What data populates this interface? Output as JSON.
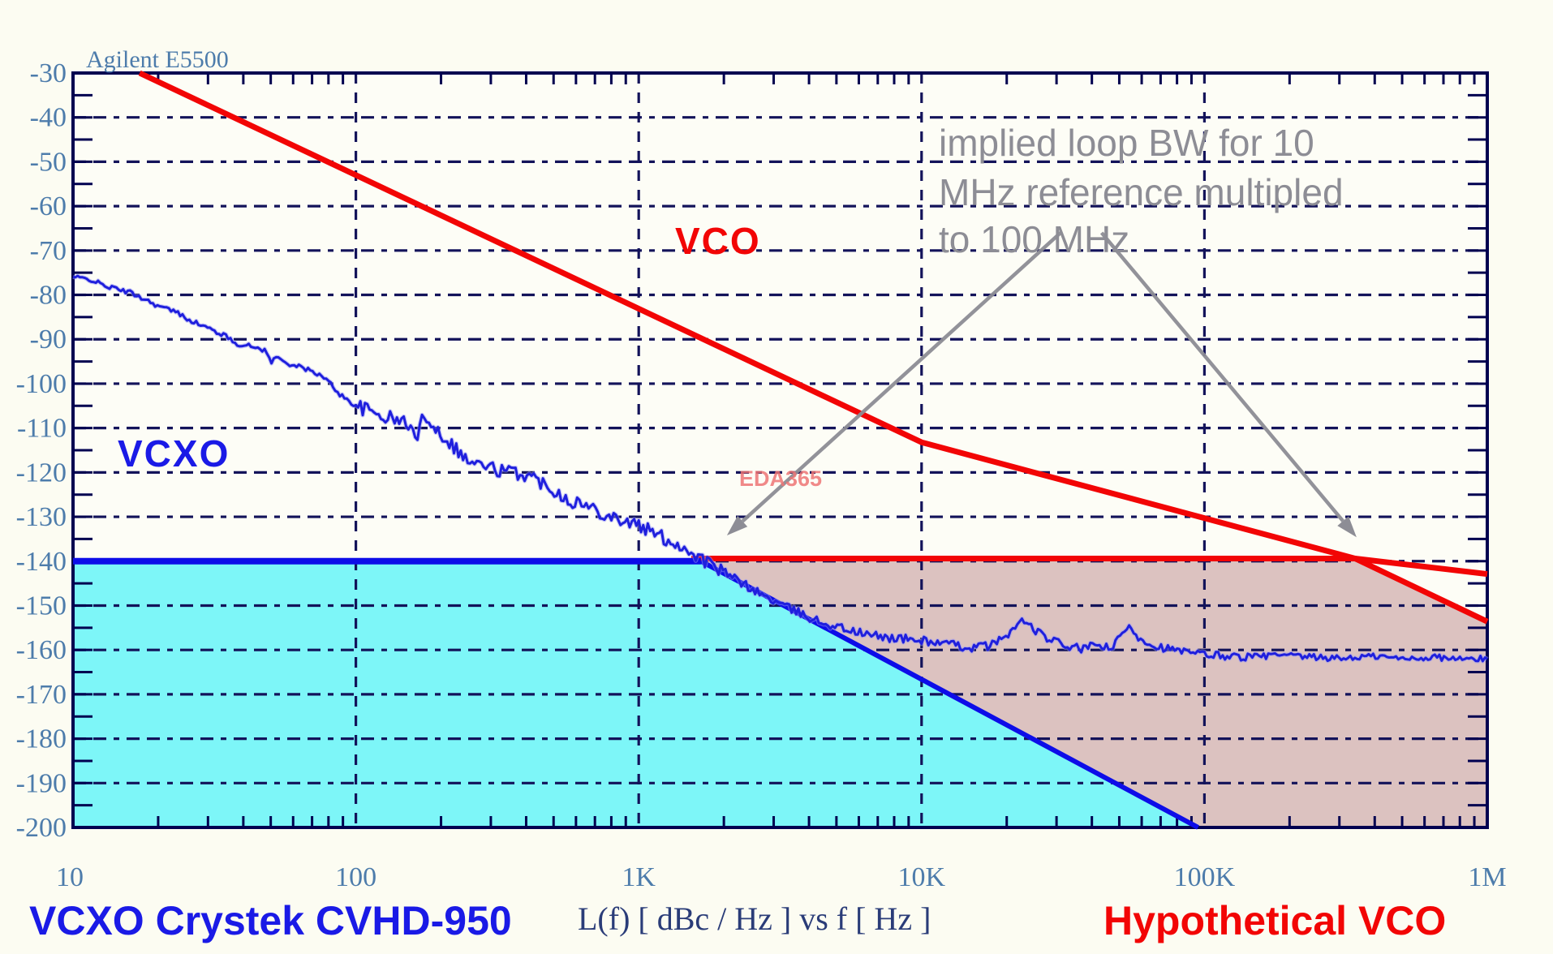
{
  "header": {
    "instrument": "Agilent E5500"
  },
  "watermark": "EDA365",
  "labels": {
    "vco": "VCO",
    "vcxo": "VCXO"
  },
  "annotation": {
    "line1": "implied loop BW for 10",
    "line2": "MHz reference multipled",
    "line3": "to 100 MHz"
  },
  "captions": {
    "left": "VCXO Crystek CVHD-950",
    "center": "L(f)  [ dBc / Hz ]  vs  f [ Hz ]",
    "right": "Hypothetical VCO"
  },
  "palette": {
    "background": "#fcfcf2",
    "plot_bg": "#fdfdf6",
    "axis_navy": "#000050",
    "grid_navy": "#13135a",
    "red": "#f20505",
    "blue_line": "#0d0de8",
    "trace_blue": "#1f1fdd",
    "trace_halo": "#9a9af5",
    "cyan_fill": "#7df6f8",
    "pink_fill": "#dcc2c0",
    "gray_annotation": "#8d8d95",
    "steel_blue_ticks": "#4d7cab",
    "caption_navy": "#2a3c78",
    "label_blue": "#1a1ae6",
    "watermark_pink": "#ee7575"
  },
  "chart_data": {
    "type": "line",
    "title": "Agilent E5500",
    "xlabel": "f [Hz]",
    "ylabel": "L(f) [dBc/Hz]",
    "x_axis": {
      "scale": "log",
      "min": 10,
      "max": 1000000,
      "tick_labels": [
        "10",
        "100",
        "1K",
        "10K",
        "100K",
        "1M"
      ]
    },
    "y_axis": {
      "min": -200,
      "max": -30,
      "step": 10,
      "tick_labels": [
        "-30",
        "-40",
        "-50",
        "-60",
        "-70",
        "-80",
        "-90",
        "-100",
        "-110",
        "-120",
        "-130",
        "-140",
        "-150",
        "-160",
        "-170",
        "-180",
        "-190",
        "-200"
      ]
    },
    "grid": "dashed",
    "legend_position": "none",
    "series": [
      {
        "name": "VCO free-running",
        "color": "red",
        "width": 7,
        "points": [
          [
            17.2,
            -30
          ],
          [
            10000,
            -113.2
          ],
          [
            341000,
            -139.4
          ],
          [
            1000000,
            -153.6
          ]
        ]
      },
      {
        "name": "10 MHz reference multiplied to 100 MHz (floor -140)",
        "color": "red",
        "width": 7,
        "points": [
          [
            1535,
            -139.4
          ],
          [
            341000,
            -139.4
          ],
          [
            1000000,
            -142.9
          ]
        ]
      },
      {
        "name": "VCXO floor -140",
        "color": "blue",
        "width": 8,
        "points": [
          [
            10,
            -140
          ],
          [
            1660,
            -140
          ]
        ]
      },
      {
        "name": "PLL loop skirt",
        "color": "blue",
        "width": 6,
        "points": [
          [
            1660,
            -140
          ],
          [
            95000,
            -200
          ]
        ]
      },
      {
        "name": "VCXO measured Crystek CVHD-950",
        "color": "trace",
        "width": 3,
        "noisy": true,
        "noise_amp": [
          [
            100,
            0.5
          ],
          [
            2000,
            1.6
          ],
          [
            20000,
            1.0
          ],
          [
            150000,
            0.9
          ],
          [
            1000001,
            0.7
          ]
        ],
        "points": [
          [
            10,
            -76
          ],
          [
            11.5,
            -76.5
          ],
          [
            13,
            -78
          ],
          [
            16,
            -79.5
          ],
          [
            18,
            -81
          ],
          [
            20,
            -82.5
          ],
          [
            23,
            -83.8
          ],
          [
            26,
            -85.7
          ],
          [
            30,
            -87.5
          ],
          [
            34,
            -89
          ],
          [
            38,
            -91
          ],
          [
            44,
            -91.8
          ],
          [
            48,
            -92.5
          ],
          [
            50,
            -95.3
          ],
          [
            52,
            -94
          ],
          [
            58,
            -95.5
          ],
          [
            65,
            -96.5
          ],
          [
            72,
            -97.5
          ],
          [
            80,
            -99.5
          ],
          [
            88,
            -102.5
          ],
          [
            100,
            -105
          ],
          [
            115,
            -106.5
          ],
          [
            135,
            -108
          ],
          [
            155,
            -109
          ],
          [
            163,
            -113
          ],
          [
            175,
            -106.5
          ],
          [
            190,
            -110
          ],
          [
            210,
            -112.5
          ],
          [
            250,
            -117.5
          ],
          [
            320,
            -119.5
          ],
          [
            400,
            -120.5
          ],
          [
            480,
            -123
          ],
          [
            560,
            -126
          ],
          [
            650,
            -127.5
          ],
          [
            780,
            -129.5
          ],
          [
            900,
            -131
          ],
          [
            1000,
            -132
          ],
          [
            1200,
            -134.5
          ],
          [
            1450,
            -137
          ],
          [
            1700,
            -139.8
          ],
          [
            2000,
            -142.5
          ],
          [
            2400,
            -145.5
          ],
          [
            2900,
            -148.5
          ],
          [
            3500,
            -151
          ],
          [
            4300,
            -153.5
          ],
          [
            5200,
            -155
          ],
          [
            6300,
            -156.5
          ],
          [
            7600,
            -157.2
          ],
          [
            9000,
            -157.6
          ],
          [
            10500,
            -158
          ],
          [
            12500,
            -158.8
          ],
          [
            15000,
            -159.5
          ],
          [
            18000,
            -158.8
          ],
          [
            21000,
            -155.5
          ],
          [
            23000,
            -153.2
          ],
          [
            25000,
            -155.5
          ],
          [
            28000,
            -157.5
          ],
          [
            32000,
            -159
          ],
          [
            37000,
            -159.8
          ],
          [
            42000,
            -158.8
          ],
          [
            47000,
            -159.8
          ],
          [
            52000,
            -155.8
          ],
          [
            55000,
            -154.8
          ],
          [
            58000,
            -157
          ],
          [
            65000,
            -158.8
          ],
          [
            75000,
            -159.8
          ],
          [
            90000,
            -160.8
          ],
          [
            110000,
            -161.2
          ],
          [
            140000,
            -161.6
          ],
          [
            180000,
            -161.2
          ],
          [
            230000,
            -161.6
          ],
          [
            300000,
            -161.9
          ],
          [
            400000,
            -161.4
          ],
          [
            500000,
            -162
          ],
          [
            650000,
            -161.6
          ],
          [
            800000,
            -162.1
          ],
          [
            1000000,
            -162
          ]
        ]
      }
    ],
    "regions": [
      {
        "name": "vcxo-dominant-region",
        "fill": "cyan",
        "points": [
          [
            10,
            -140
          ],
          [
            1660,
            -140
          ],
          [
            95000,
            -200
          ],
          [
            10,
            -200
          ]
        ]
      },
      {
        "name": "reference-dominant-region",
        "fill": "pink",
        "points": [
          [
            1660,
            -139.6
          ],
          [
            341000,
            -139.4
          ],
          [
            1000000,
            -153.6
          ],
          [
            1000000,
            -200
          ],
          [
            95000,
            -200
          ]
        ]
      }
    ],
    "arrows": [
      {
        "name": "arrow-to-vcxo-junction",
        "from": [
          31000,
          -66
        ],
        "to": [
          2050,
          -134.2
        ]
      },
      {
        "name": "arrow-to-vco-junction",
        "from": [
          43300,
          -66
        ],
        "to": [
          345000,
          -134.6
        ]
      }
    ]
  }
}
